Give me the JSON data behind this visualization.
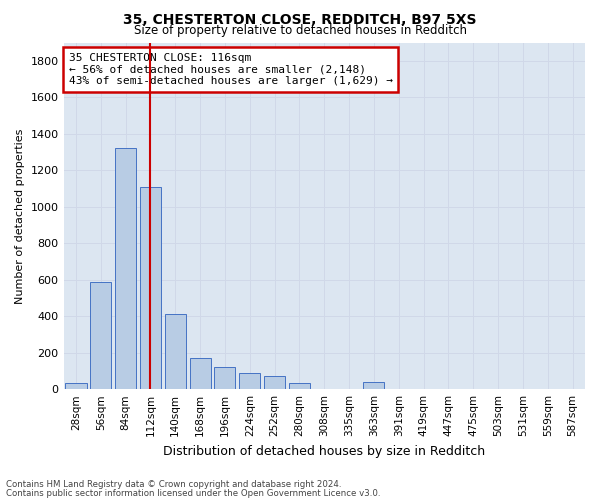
{
  "title_line1": "35, CHESTERTON CLOSE, REDDITCH, B97 5XS",
  "title_line2": "Size of property relative to detached houses in Redditch",
  "xlabel": "Distribution of detached houses by size in Redditch",
  "ylabel": "Number of detached properties",
  "bar_color": "#b8cce4",
  "bar_edge_color": "#4472c4",
  "categories": [
    "28sqm",
    "56sqm",
    "84sqm",
    "112sqm",
    "140sqm",
    "168sqm",
    "196sqm",
    "224sqm",
    "252sqm",
    "280sqm",
    "308sqm",
    "335sqm",
    "363sqm",
    "391sqm",
    "419sqm",
    "447sqm",
    "475sqm",
    "503sqm",
    "531sqm",
    "559sqm",
    "587sqm"
  ],
  "values": [
    35,
    590,
    1320,
    1110,
    410,
    170,
    120,
    90,
    70,
    35,
    0,
    0,
    40,
    0,
    0,
    0,
    0,
    0,
    0,
    0,
    0
  ],
  "vline_x_index": 3.0,
  "vline_color": "#cc0000",
  "annotation_text_line1": "35 CHESTERTON CLOSE: 116sqm",
  "annotation_text_line2": "← 56% of detached houses are smaller (2,148)",
  "annotation_text_line3": "43% of semi-detached houses are larger (1,629) →",
  "annotation_box_color": "#cc0000",
  "ylim": [
    0,
    1900
  ],
  "yticks": [
    0,
    200,
    400,
    600,
    800,
    1000,
    1200,
    1400,
    1600,
    1800
  ],
  "grid_color": "#d0d8e8",
  "background_color": "#dce6f1",
  "footer_line1": "Contains HM Land Registry data © Crown copyright and database right 2024.",
  "footer_line2": "Contains public sector information licensed under the Open Government Licence v3.0."
}
